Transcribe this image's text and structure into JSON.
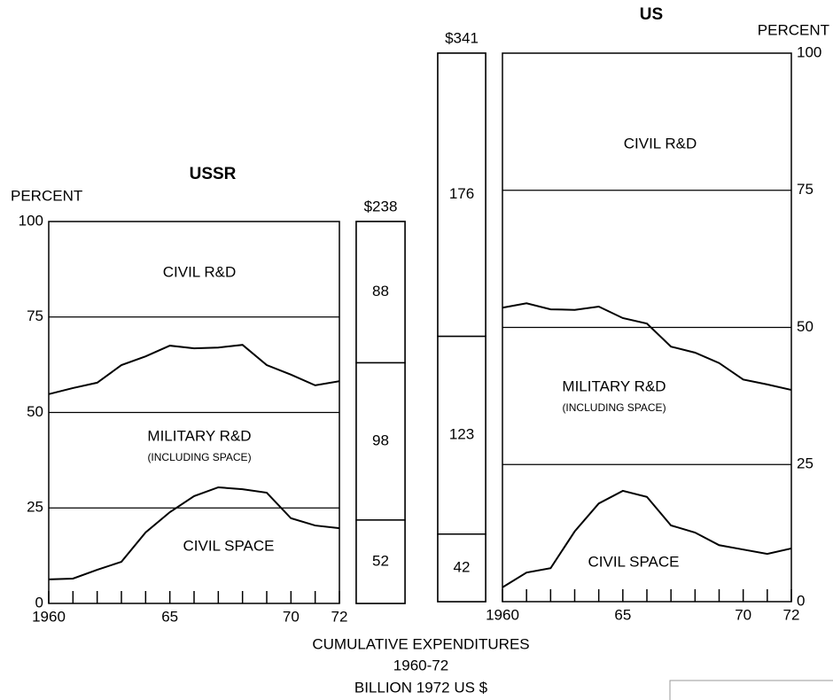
{
  "chart_data": [
    {
      "type": "line",
      "stacked": true,
      "title": "USSR",
      "ylabel": "PERCENT",
      "yaxis_side": "left",
      "x": [
        1960,
        1961,
        1962,
        1963,
        1964,
        1965,
        1966,
        1967,
        1968,
        1969,
        1970,
        1971,
        1972
      ],
      "xlim": [
        1960,
        1972
      ],
      "xticks": [
        1960,
        {
          "value": 1965,
          "label": "65"
        },
        {
          "value": 1970,
          "label": "70"
        },
        {
          "value": 1972,
          "label": "72"
        }
      ],
      "ylim": [
        0,
        100
      ],
      "yticks": [
        0,
        25,
        50,
        75,
        100
      ],
      "grid": true,
      "series": [
        {
          "name": "CIVIL SPACE",
          "color": "#000000",
          "values": [
            6.3,
            6.5,
            8.8,
            10.9,
            18.6,
            23.9,
            28.1,
            30.4,
            29.9,
            29.0,
            22.3,
            20.4,
            19.7
          ]
        },
        {
          "name": "MILITARY R&D",
          "color": "#000000",
          "values": [
            48.5,
            49.9,
            49.0,
            51.5,
            46.1,
            43.6,
            38.7,
            36.6,
            37.8,
            33.4,
            37.6,
            36.7,
            38.5
          ]
        }
      ],
      "annotations": [
        "CIVIL R&D",
        "(INCLUDING SPACE)"
      ]
    },
    {
      "type": "stacked_bar",
      "total": {
        "value": 238,
        "label": "$238"
      },
      "values": [
        52,
        98,
        88
      ],
      "color": "#ffffff"
    },
    {
      "type": "stacked_bar",
      "total": {
        "value": 341,
        "label": "$341"
      },
      "values": [
        42,
        123,
        176
      ],
      "color": "#ffffff"
    },
    {
      "type": "line",
      "stacked": true,
      "title": "US",
      "ylabel": "PERCENT",
      "yaxis_side": "right",
      "x": [
        1960,
        1961,
        1962,
        1963,
        1964,
        1965,
        1966,
        1967,
        1968,
        1969,
        1970,
        1971,
        1972
      ],
      "xlim": [
        1960,
        1972
      ],
      "xticks": [
        1960,
        {
          "value": 1965,
          "label": "65"
        },
        {
          "value": 1970,
          "label": "70"
        },
        {
          "value": 1972,
          "label": "72"
        }
      ],
      "ylim": [
        0,
        100
      ],
      "yticks": [
        0,
        25,
        50,
        75,
        100
      ],
      "grid": true,
      "series": [
        {
          "name": "CIVIL SPACE",
          "color": "#000000",
          "values": [
            2.6,
            5.3,
            6.1,
            12.8,
            17.9,
            20.2,
            19.1,
            13.9,
            12.6,
            10.3,
            9.5,
            8.7,
            9.7
          ]
        },
        {
          "name": "MILITARY R&D",
          "color": "#000000",
          "values": [
            51.0,
            49.1,
            47.2,
            40.4,
            35.9,
            31.5,
            31.6,
            32.6,
            32.8,
            33.2,
            31.0,
            30.9,
            28.9
          ]
        }
      ],
      "annotations": [
        "CIVIL R&D",
        "(INCLUDING SPACE)"
      ]
    }
  ],
  "caption": [
    "CUMULATIVE EXPENDITURES",
    "1960-72",
    "BILLION 1972 US $"
  ]
}
